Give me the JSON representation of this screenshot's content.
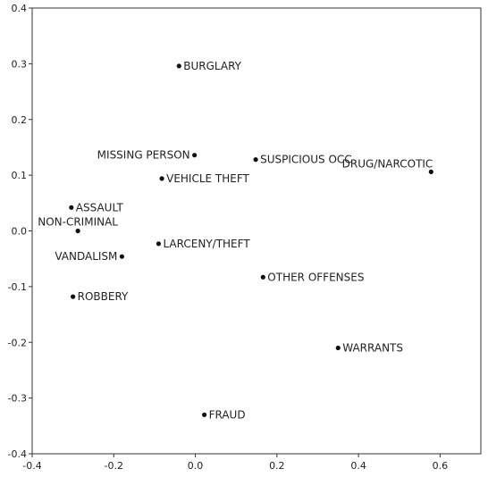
{
  "chart_data": {
    "type": "scatter",
    "title": "",
    "xlabel": "",
    "ylabel": "",
    "xlim": [
      -0.4,
      0.7
    ],
    "ylim": [
      -0.4,
      0.4
    ],
    "x_ticks": [
      {
        "value": -0.4,
        "label": "-0.4"
      },
      {
        "value": -0.2,
        "label": "-0.2"
      },
      {
        "value": 0.0,
        "label": "0.0"
      },
      {
        "value": 0.2,
        "label": "0.2"
      },
      {
        "value": 0.4,
        "label": "0.4"
      },
      {
        "value": 0.6,
        "label": "0.6"
      }
    ],
    "y_ticks": [
      {
        "value": 0.4,
        "label": "0.4"
      },
      {
        "value": 0.3,
        "label": "0.3"
      },
      {
        "value": 0.2,
        "label": "0.2"
      },
      {
        "value": 0.1,
        "label": "0.1"
      },
      {
        "value": 0.0,
        "label": "0.0"
      },
      {
        "value": -0.1,
        "label": "-0.1"
      },
      {
        "value": -0.2,
        "label": "-0.2"
      },
      {
        "value": -0.3,
        "label": "-0.3"
      },
      {
        "value": -0.4,
        "label": "-0.4"
      }
    ],
    "grid": false,
    "points": [
      {
        "label": "BURGLARY",
        "x": -0.04,
        "y": 0.296,
        "label_side": "right"
      },
      {
        "label": "MISSING PERSON",
        "x": -0.002,
        "y": 0.136,
        "label_side": "left"
      },
      {
        "label": "SUSPICIOUS OCC",
        "x": 0.148,
        "y": 0.128,
        "label_side": "right"
      },
      {
        "label": "DRUG/NARCOTIC",
        "x": 0.578,
        "y": 0.106,
        "label_side": "above-left"
      },
      {
        "label": "VEHICLE THEFT",
        "x": -0.082,
        "y": 0.094,
        "label_side": "right"
      },
      {
        "label": "ASSAULT",
        "x": -0.304,
        "y": 0.042,
        "label_side": "right"
      },
      {
        "label": "NON-CRIMINAL",
        "x": -0.288,
        "y": 0.0,
        "label_side": "above"
      },
      {
        "label": "LARCENY/THEFT",
        "x": -0.09,
        "y": -0.023,
        "label_side": "right"
      },
      {
        "label": "VANDALISM",
        "x": -0.18,
        "y": -0.046,
        "label_side": "left"
      },
      {
        "label": "OTHER OFFENSES",
        "x": 0.166,
        "y": -0.083,
        "label_side": "right"
      },
      {
        "label": "ROBBERY",
        "x": -0.3,
        "y": -0.118,
        "label_side": "right"
      },
      {
        "label": "WARRANTS",
        "x": 0.35,
        "y": -0.21,
        "label_side": "right"
      },
      {
        "label": "FRAUD",
        "x": 0.022,
        "y": -0.33,
        "label_side": "right"
      }
    ]
  },
  "colors": {
    "point": "#111111",
    "axis": "#333333",
    "text": "#222222",
    "background": "#ffffff"
  }
}
